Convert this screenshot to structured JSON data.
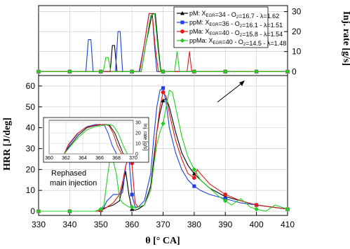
{
  "chart_data": [
    {
      "id": "main-hrr",
      "type": "line",
      "title": "",
      "xlabel": "θ [° CA]",
      "ylabel": "HRR [J/deg]",
      "xlim": [
        330,
        410
      ],
      "ylim": [
        -2,
        65
      ],
      "xticks": [
        330,
        340,
        350,
        360,
        370,
        380,
        390,
        400,
        410
      ],
      "yticks": [
        0,
        10,
        20,
        30,
        40,
        50,
        60
      ],
      "grid": true,
      "series": [
        {
          "legend_key": "pm",
          "color": "#000000",
          "marker": "triangle",
          "x": [
            330,
            340,
            349,
            350,
            351,
            352,
            354,
            356,
            357,
            358,
            359,
            360,
            361,
            362,
            364,
            366,
            367,
            368,
            369,
            370,
            371,
            372,
            374,
            376,
            378,
            380,
            382,
            385,
            390,
            395,
            400,
            405,
            410
          ],
          "y": [
            0,
            0,
            0,
            0.5,
            1.5,
            2,
            3,
            5,
            12,
            19,
            8,
            1,
            0.5,
            1,
            3,
            12,
            25,
            38,
            47,
            53,
            54,
            50,
            38,
            28,
            22,
            18,
            15,
            11,
            7,
            5,
            3,
            2,
            1
          ]
        },
        {
          "legend_key": "ppm",
          "color": "#1f3fe0",
          "marker": "square",
          "x": [
            330,
            340,
            349,
            350,
            351,
            352,
            354,
            356,
            357,
            358,
            359,
            360,
            361,
            362,
            364,
            366,
            367,
            368,
            369,
            370,
            371,
            372,
            374,
            376,
            378,
            380,
            382,
            385,
            390,
            395,
            400,
            405,
            410
          ],
          "y": [
            0,
            0,
            0,
            0.5,
            2,
            5,
            8,
            8,
            9,
            22,
            26,
            8,
            2,
            2,
            5,
            18,
            35,
            50,
            58,
            59,
            52,
            40,
            28,
            20,
            15,
            12,
            10,
            8,
            6,
            4,
            3,
            2,
            1
          ]
        },
        {
          "legend_key": "pma",
          "color": "#e01a1a",
          "marker": "circle",
          "x": [
            330,
            340,
            349,
            350,
            351,
            352,
            354,
            356,
            357,
            358,
            359,
            360,
            361,
            362,
            364,
            366,
            367,
            368,
            369,
            370,
            371,
            372,
            374,
            376,
            378,
            380,
            381,
            382,
            385,
            390,
            395,
            400,
            405,
            410
          ],
          "y": [
            0,
            0,
            0,
            0.5,
            1,
            2,
            4,
            8,
            14,
            22,
            26,
            23,
            4,
            2,
            3,
            10,
            22,
            38,
            50,
            57,
            55,
            47,
            34,
            25,
            18,
            16,
            20,
            18,
            13,
            8,
            5,
            3,
            2,
            1
          ]
        },
        {
          "legend_key": "ppma",
          "color": "#22cc22",
          "marker": "diamond",
          "x": [
            330,
            340,
            348,
            349,
            350,
            351,
            352,
            353,
            354,
            355,
            356,
            357,
            358,
            359,
            360,
            361,
            362,
            364,
            366,
            367,
            368,
            369,
            370,
            371,
            372,
            373,
            374,
            376,
            378,
            380,
            382,
            385,
            388,
            390,
            392,
            395,
            398,
            400,
            403,
            406,
            410
          ],
          "y": [
            0,
            0,
            0,
            0.5,
            1,
            3,
            15,
            26,
            24,
            18,
            6,
            4,
            3,
            2,
            2,
            1.5,
            2,
            3,
            10,
            22,
            32,
            38,
            42,
            50,
            58,
            57,
            50,
            36,
            26,
            20,
            15,
            11,
            7,
            5,
            3,
            6,
            2,
            1,
            0,
            3,
            1
          ]
        }
      ]
    },
    {
      "id": "injection-rate",
      "type": "line",
      "title": "",
      "ylabel": "Inj. rate [g/s]",
      "xlim": [
        330,
        410
      ],
      "ylim": [
        -2,
        33
      ],
      "yticks": [
        0,
        10,
        20,
        30
      ],
      "series": [
        {
          "legend_key": "pm",
          "color": "#000000",
          "marker": "triangle",
          "x": [
            330,
            352,
            353,
            353.7,
            354.4,
            355.2,
            356,
            363,
            364.5,
            366.5,
            367.5,
            368.5,
            369.3,
            370,
            410
          ],
          "y": [
            0,
            0,
            0,
            13,
            13,
            0,
            0,
            0,
            14,
            29,
            29,
            12,
            0,
            0,
            0
          ]
        },
        {
          "legend_key": "ppm",
          "color": "#1f3fe0",
          "marker": "square",
          "x": [
            330,
            344.5,
            345.2,
            346.0,
            346.8,
            347.5,
            354,
            354.7,
            355.5,
            356.2,
            357,
            362.3,
            364,
            365.5,
            366.5,
            367.3,
            368,
            368.7,
            410
          ],
          "y": [
            0,
            0,
            0,
            16,
            16,
            0,
            0,
            0,
            20,
            20,
            0,
            0,
            14,
            29,
            29,
            12,
            0,
            0,
            0
          ]
        },
        {
          "legend_key": "pma",
          "color": "#e01a1a",
          "marker": "circle",
          "x": [
            330,
            362.5,
            364,
            365.5,
            366.5,
            367.5,
            368.5,
            377,
            377.7,
            378.5,
            379.2,
            410
          ],
          "y": [
            0,
            0,
            14,
            29,
            29,
            12,
            0,
            0,
            0,
            10,
            0,
            0
          ]
        },
        {
          "legend_key": "ppma",
          "color": "#22cc22",
          "marker": "diamond",
          "x": [
            330,
            350,
            350.8,
            351.6,
            352.4,
            353.2,
            363,
            364.5,
            366,
            367.3,
            368.3,
            369.2,
            370,
            373,
            373.7,
            374.5,
            375.3,
            376,
            410
          ],
          "y": [
            0,
            0,
            0,
            7,
            7,
            0,
            0,
            14,
            28,
            29,
            12,
            0,
            0,
            0,
            0,
            10,
            0,
            0,
            0
          ]
        }
      ]
    },
    {
      "id": "inset-rephased",
      "type": "line",
      "title": "",
      "ylabel": "Inj. rate [g/s]",
      "xlim": [
        360,
        370
      ],
      "ylim": [
        0,
        32
      ],
      "xticks": [
        360,
        362,
        364,
        366,
        368,
        370
      ],
      "yticks": [
        0,
        10,
        20,
        30
      ],
      "grid": true,
      "series": [
        {
          "legend_key": "pm",
          "color": "#000000",
          "x": [
            361.8,
            362.5,
            363.5,
            364.5,
            365.5,
            366.3,
            366.8,
            367.2,
            367.8,
            368.4,
            368.8
          ],
          "y": [
            0,
            8,
            18,
            25,
            27,
            28,
            28,
            27,
            20,
            8,
            0
          ]
        },
        {
          "legend_key": "ppm",
          "color": "#1f3fe0",
          "x": [
            361.8,
            362.5,
            363.5,
            364.5,
            365.5,
            366.2,
            366.6,
            367.0,
            367.5,
            368.0
          ],
          "y": [
            0,
            10,
            20,
            26,
            28,
            28,
            27,
            20,
            8,
            0
          ]
        },
        {
          "legend_key": "pma",
          "color": "#e01a1a",
          "x": [
            361.8,
            362.3,
            363.3,
            364.3,
            365.3,
            366.0,
            366.6,
            367.1,
            367.6,
            368.1,
            368.6
          ],
          "y": [
            0,
            9,
            19,
            25,
            27,
            28,
            28,
            27,
            20,
            8,
            0
          ]
        },
        {
          "legend_key": "ppma",
          "color": "#22cc22",
          "x": [
            361.8,
            362.5,
            363.5,
            364.5,
            365.5,
            366.3,
            367.0,
            367.6,
            368.2,
            368.8,
            369.3
          ],
          "y": [
            0,
            7,
            16,
            23,
            26,
            27,
            28,
            27,
            20,
            8,
            0
          ]
        }
      ]
    }
  ],
  "legend": {
    "position": "top-right",
    "items": [
      {
        "key": "pm",
        "name": "pM:",
        "x_var": "X",
        "x_sub": "EGR",
        "params": "=34 - O",
        "o_sub": "2",
        "rest": "=16.7 - λ=1.62"
      },
      {
        "key": "ppm",
        "name": "ppM:",
        "x_var": "X",
        "x_sub": "EGR",
        "params": "=36 - O",
        "o_sub": "2",
        "rest": "=16.1 - λ=1.51"
      },
      {
        "key": "pma",
        "name": "pMa:",
        "x_var": "X",
        "x_sub": "EGR",
        "params": "=40 - O",
        "o_sub": "2",
        "rest": "=15.8 - λ=1.54"
      },
      {
        "key": "ppma",
        "name": "ppMa:",
        "x_var": "X",
        "x_sub": "EGR",
        "params": "=40 - O",
        "o_sub": "2",
        "rest": "=14.5 - λ=1.48"
      }
    ]
  },
  "annotation": {
    "line1": "Rephased",
    "line2": "main injection"
  }
}
